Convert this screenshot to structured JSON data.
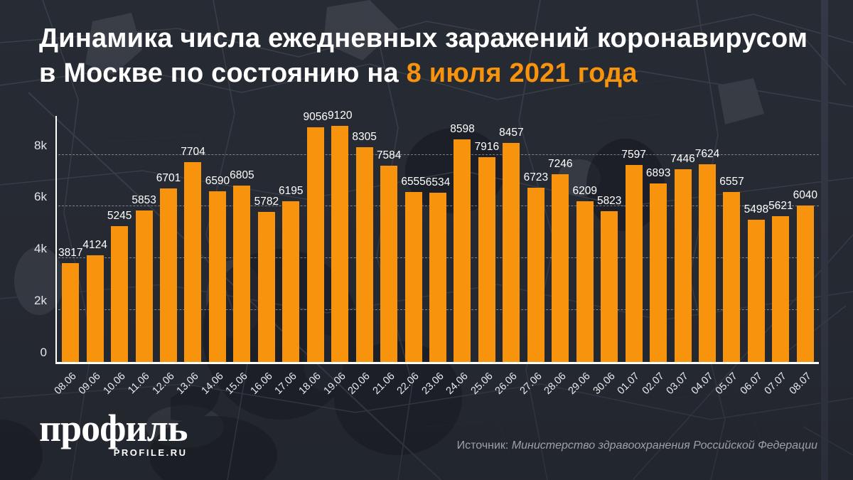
{
  "title": {
    "line1": "Динамика числа ежедневных заражений коронавирусом",
    "line2_prefix": "в Москве по состоянию на ",
    "highlight": "8 июля 2021 года"
  },
  "colors": {
    "background": "#272b33",
    "accent_orange": "#f8930e",
    "title_text": "#ffffff",
    "axis_labels": "#e3e5e9",
    "source_text": "#9ea0a8"
  },
  "chart_data": {
    "type": "bar",
    "categories": [
      "08.06",
      "09.06",
      "10.06",
      "11.06",
      "12.06",
      "13.06",
      "14.06",
      "15.06",
      "16.06",
      "17.06",
      "18.06",
      "19.06",
      "20.06",
      "21.06",
      "22.06",
      "23.06",
      "24.06",
      "25.06",
      "26.06",
      "27.06",
      "28.06",
      "29.06",
      "30.06",
      "01.07",
      "02.07",
      "03.07",
      "04.07",
      "05.07",
      "06.07",
      "07.07",
      "08.07"
    ],
    "values": [
      3817,
      4124,
      5245,
      5853,
      6701,
      7704,
      6590,
      6805,
      5782,
      6195,
      9056,
      9120,
      8305,
      7584,
      6555,
      6534,
      8598,
      7916,
      8457,
      6723,
      7246,
      6209,
      5823,
      7597,
      6893,
      7446,
      7624,
      6557,
      5498,
      5621,
      6040
    ],
    "title": "Динамика числа ежедневных заражений коронавирусом в Москве по состоянию на 8 июля 2021 года",
    "xlabel": "",
    "ylabel": "",
    "ylim": [
      0,
      9500
    ],
    "yticks": [
      {
        "label": "0",
        "value": 0
      },
      {
        "label": "2k",
        "value": 2000
      },
      {
        "label": "4k",
        "value": 4000
      },
      {
        "label": "6k",
        "value": 6000
      },
      {
        "label": "8k",
        "value": 8000
      }
    ],
    "grid": "horizontal-dashed",
    "legend": "none",
    "bar_color": "#f8930e",
    "value_labels": true
  },
  "footer": {
    "logo_main": "профиль",
    "logo_sub": "PROFILE.RU",
    "source_prefix": "Источник: ",
    "source_name": "Министерство здравоохранения Российской Федерации"
  }
}
